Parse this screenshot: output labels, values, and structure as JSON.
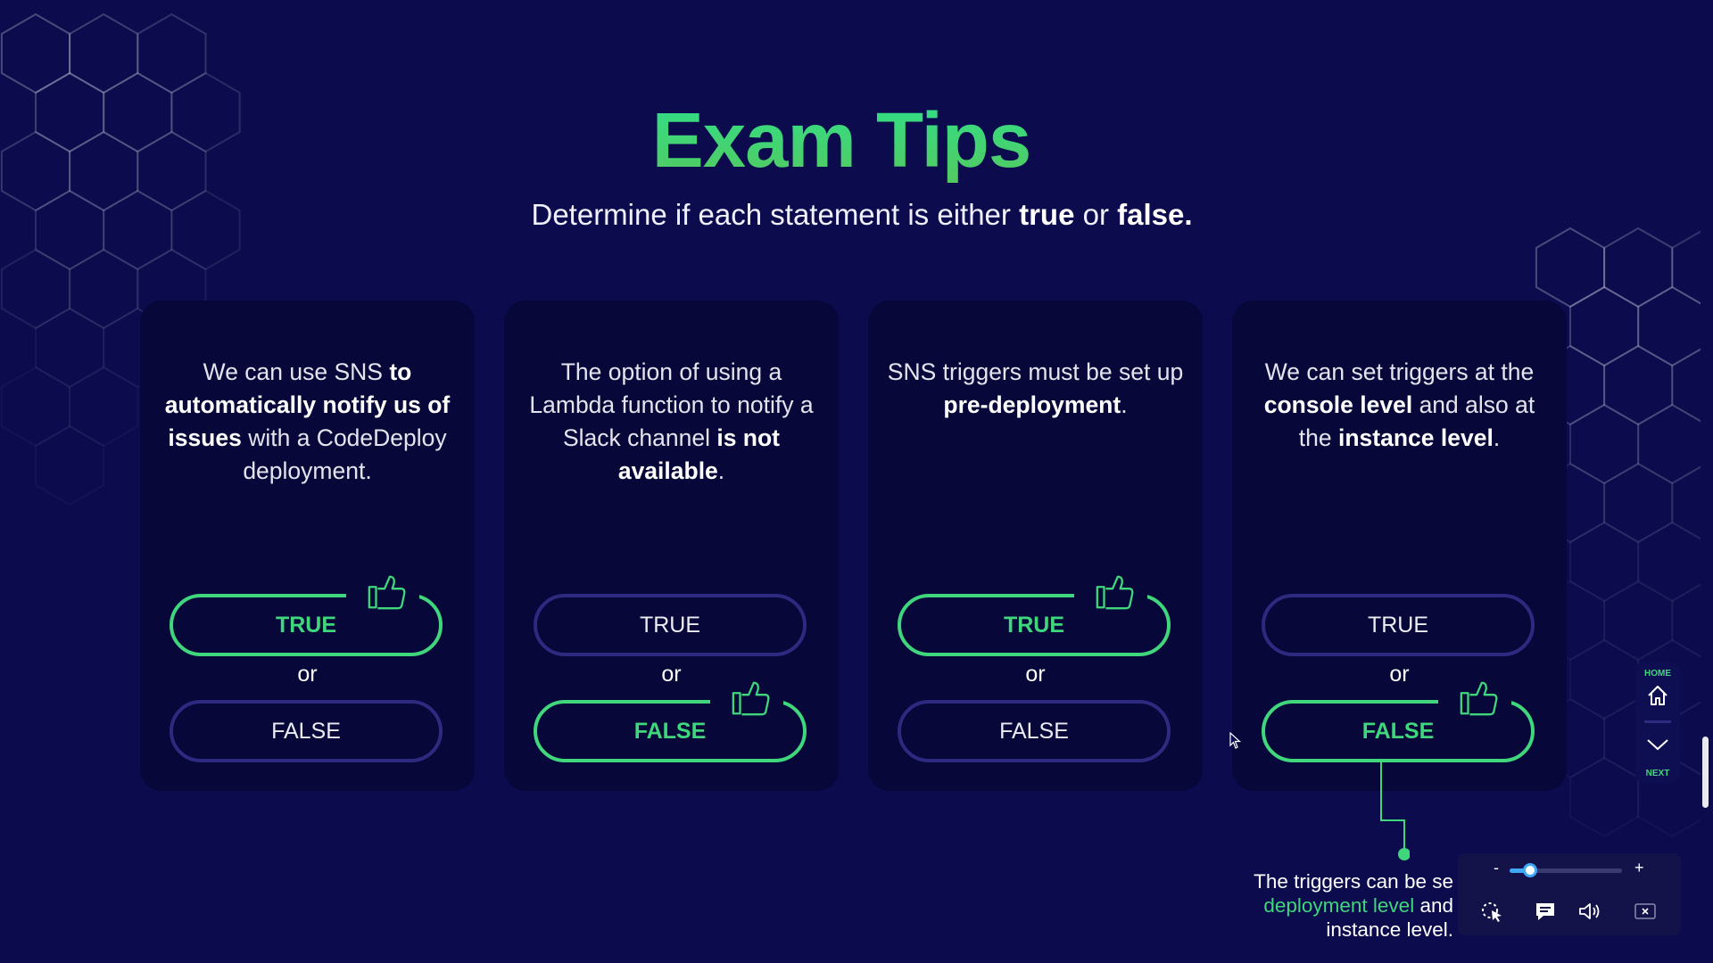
{
  "slide": {
    "title": "Exam Tips",
    "subtitle_pre": "Determine if each statement is either ",
    "subtitle_true": "true",
    "subtitle_or": " or ",
    "subtitle_false": "false."
  },
  "labels": {
    "true": "TRUE",
    "false": "FALSE",
    "or": "or"
  },
  "cards": [
    {
      "statement_parts": [
        {
          "text": "We can use SNS ",
          "bold": false
        },
        {
          "text": "to automatically notify us of issues",
          "bold": true
        },
        {
          "text": " with a CodeDeploy deployment.",
          "bold": false
        }
      ],
      "answer": "true"
    },
    {
      "statement_parts": [
        {
          "text": "The option of using a Lambda function to notify a Slack channel ",
          "bold": false
        },
        {
          "text": "is not available",
          "bold": true
        },
        {
          "text": ".",
          "bold": false
        }
      ],
      "answer": "false"
    },
    {
      "statement_parts": [
        {
          "text": "SNS triggers must be set up ",
          "bold": false
        },
        {
          "text": "pre-deployment",
          "bold": true
        },
        {
          "text": ".",
          "bold": false
        }
      ],
      "answer": "true"
    },
    {
      "statement_parts": [
        {
          "text": "We can set triggers at the ",
          "bold": false
        },
        {
          "text": "console level",
          "bold": true
        },
        {
          "text": " and also at the ",
          "bold": false
        },
        {
          "text": "instance level",
          "bold": true
        },
        {
          "text": ".",
          "bold": false
        }
      ],
      "answer": "false"
    }
  ],
  "explanation": {
    "line1": "The triggers can be se",
    "line2_highlight": "deployment level",
    "line2_rest": " and",
    "line3": "instance level."
  },
  "nav": {
    "home_label": "HOME",
    "next_label": "NEXT",
    "home_icon": "home-icon",
    "next_icon": "chevron-down-icon"
  },
  "player": {
    "minus_label": "-",
    "plus_label": "+",
    "volume_level": 0.18,
    "icons": [
      "pointer-icon",
      "captions-icon",
      "volume-icon",
      "close-icon"
    ]
  },
  "colors": {
    "background": "#0b0b4e",
    "card": "#07073a",
    "accent_green": "#3fd67c",
    "title_gradient_top": "#2fe08a",
    "title_gradient_bottom": "#54c95f",
    "pill_border": "#2e2a80"
  }
}
